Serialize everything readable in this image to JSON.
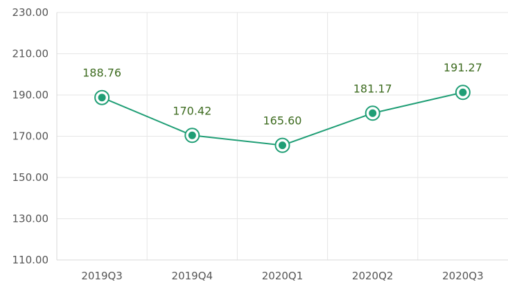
{
  "chart_data": {
    "type": "line",
    "categories": [
      "2019Q3",
      "2019Q4",
      "2020Q1",
      "2020Q2",
      "2020Q3"
    ],
    "series": [
      {
        "values": [
          188.76,
          170.42,
          165.6,
          181.17,
          191.27
        ]
      }
    ],
    "data_labels": [
      "188.76",
      "170.42",
      "165.60",
      "181.17",
      "191.27"
    ],
    "y_ticks": [
      "110.00",
      "130.00",
      "150.00",
      "170.00",
      "190.00",
      "210.00",
      "230.00"
    ],
    "ylim": [
      110,
      230
    ],
    "title": "",
    "xlabel": "",
    "ylabel": "",
    "grid": true,
    "legend": "none",
    "colors": {
      "line": "#1f9e75",
      "grid": "#e6e6e6",
      "axis": "#d8d8d8",
      "label": "#3d6b1f",
      "tick": "#555555"
    }
  }
}
